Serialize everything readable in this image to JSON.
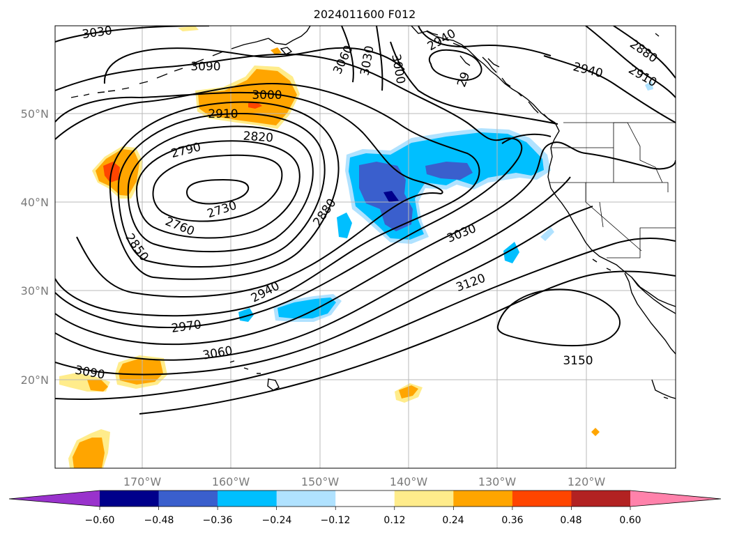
{
  "title": "2024011600 F012",
  "axes": {
    "lon_labels": [
      "170°W",
      "160°W",
      "150°W",
      "140°W",
      "130°W",
      "120°W"
    ],
    "lat_labels": [
      "50°N",
      "40°N",
      "30°N",
      "20°N"
    ]
  },
  "contour_labels": [
    "3030",
    "3090",
    "3000",
    "2910",
    "2820",
    "2790",
    "2730",
    "2760",
    "2850",
    "2880",
    "2940",
    "2970",
    "3060",
    "3090",
    "3060",
    "3030",
    "3000",
    "2940",
    "2910",
    "2880",
    "2940",
    "3030",
    "3120",
    "3150",
    "29"
  ],
  "colorbar": {
    "tick_labels": [
      "−0.60",
      "−0.48",
      "−0.36",
      "−0.24",
      "−0.12",
      "0.12",
      "0.24",
      "0.36",
      "0.48",
      "0.60"
    ],
    "colors": [
      "#9932cc",
      "#00008b",
      "#3a5fcd",
      "#00bfff",
      "#b0e2ff",
      "#ffffff",
      "#ffec8b",
      "#ffa500",
      "#ff4500",
      "#b22222",
      "#ff82ab"
    ]
  },
  "colors": {
    "grid": "#b8b8b8",
    "tick_text": "#7a7a7a",
    "contour": "#000000"
  }
}
